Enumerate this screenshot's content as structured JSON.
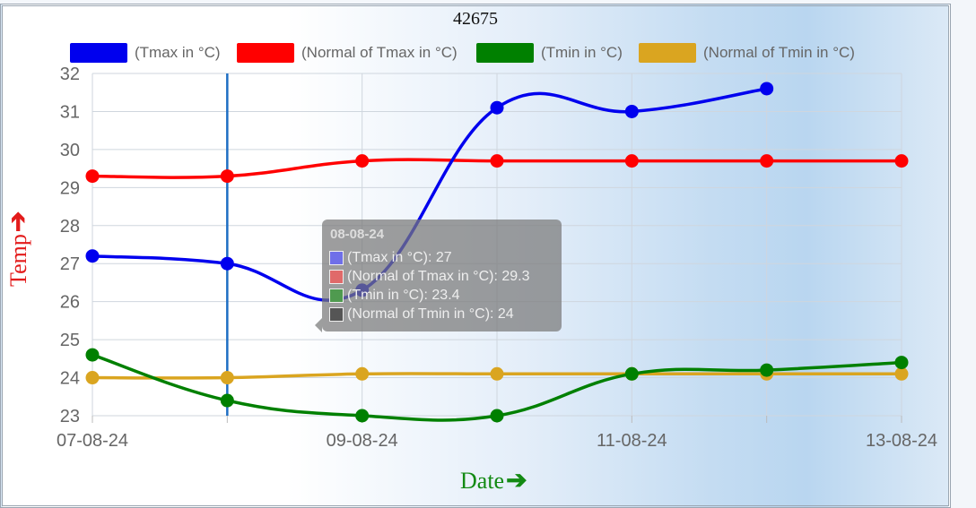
{
  "chart_data": {
    "type": "line",
    "title": "42675",
    "xlabel": "Date",
    "ylabel": "Temp",
    "x": [
      "07-08-24",
      "08-08-24",
      "09-08-24",
      "10-08-24",
      "11-08-24",
      "12-08-24",
      "13-08-24"
    ],
    "x_tick_labels": [
      "07-08-24",
      "09-08-24",
      "11-08-24",
      "13-08-24"
    ],
    "ylim": [
      23,
      32
    ],
    "y_ticks": [
      23,
      24,
      25,
      26,
      27,
      28,
      29,
      30,
      31,
      32
    ],
    "grid": true,
    "legend_position": "top",
    "series": [
      {
        "name": "(Tmax in °C)",
        "color": "#0000ee",
        "values": [
          27.2,
          27,
          26.3,
          31.1,
          31,
          31.6,
          null
        ]
      },
      {
        "name": "(Normal of Tmax in °C)",
        "color": "#ff0000",
        "values": [
          29.3,
          29.3,
          29.7,
          29.7,
          29.7,
          29.7,
          29.7
        ]
      },
      {
        "name": "(Tmin in °C)",
        "color": "#008000",
        "values": [
          24.6,
          23.4,
          23,
          23,
          24.1,
          24.2,
          24.4
        ]
      },
      {
        "name": "(Normal of Tmin in °C)",
        "color": "#daa520",
        "values": [
          24,
          24,
          24.1,
          24.1,
          24.1,
          24.1,
          24.1
        ]
      }
    ],
    "hover_index": 1,
    "tooltip": {
      "title": "08-08-24",
      "rows": [
        "(Tmax in °C): 27",
        "(Normal of Tmax in °C): 29.3",
        "(Tmin in °C): 23.4",
        "(Normal of Tmin in °C): 24"
      ]
    }
  }
}
